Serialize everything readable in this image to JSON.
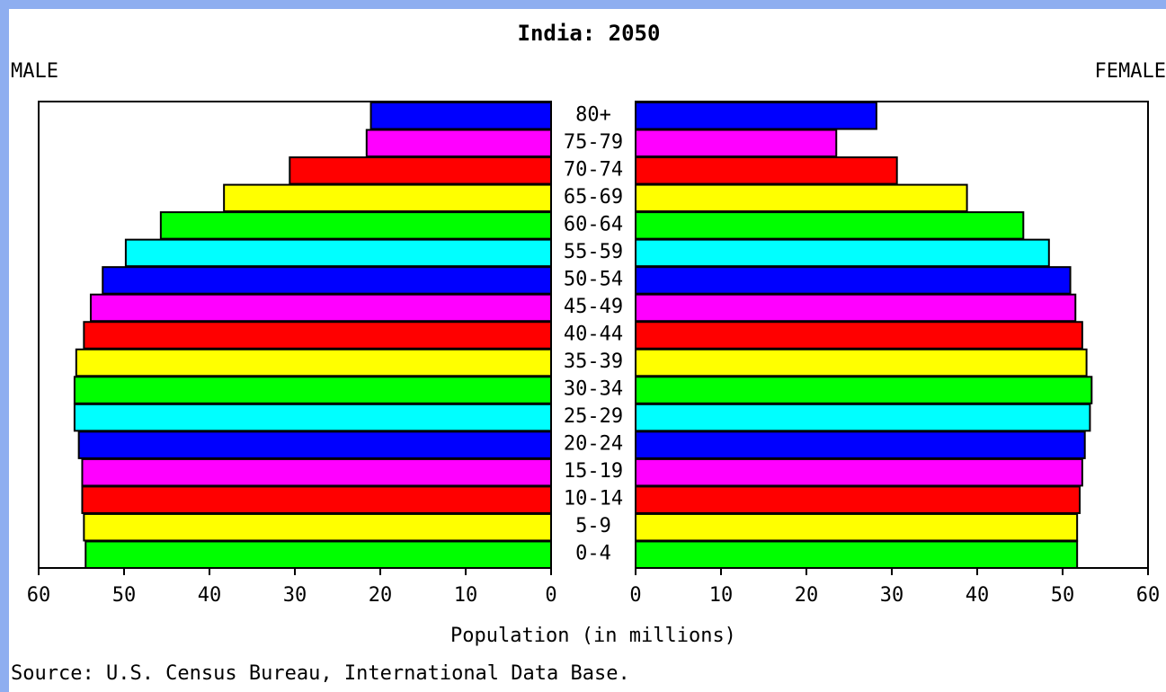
{
  "chart_data": {
    "type": "pyramid",
    "title": "India: 2050",
    "x_label": "Population (in millions)",
    "source": "Source: U.S. Census Bureau, International Data Base.",
    "categories": [
      "80+",
      "75-79",
      "70-74",
      "65-69",
      "60-64",
      "55-59",
      "50-54",
      "45-49",
      "40-44",
      "35-39",
      "30-34",
      "25-29",
      "20-24",
      "15-19",
      "10-14",
      "5-9",
      "0-4"
    ],
    "colors": [
      "#0000ff",
      "#ff00ff",
      "#ff0000",
      "#ffff00",
      "#00ff00",
      "#00ffff",
      "#0000ff",
      "#ff00ff",
      "#ff0000",
      "#ffff00",
      "#00ff00",
      "#00ffff",
      "#0000ff",
      "#ff00ff",
      "#ff0000",
      "#ffff00",
      "#00ff00"
    ],
    "series": [
      {
        "name": "MALE",
        "values": [
          21.1,
          21.6,
          30.6,
          38.3,
          45.7,
          49.8,
          52.5,
          53.9,
          54.7,
          55.6,
          55.8,
          55.8,
          55.3,
          54.9,
          54.9,
          54.7,
          54.5
        ]
      },
      {
        "name": "FEMALE",
        "values": [
          28.2,
          23.5,
          30.6,
          38.8,
          45.4,
          48.4,
          50.9,
          51.5,
          52.3,
          52.8,
          53.4,
          53.2,
          52.6,
          52.3,
          52.0,
          51.7,
          51.7
        ]
      }
    ],
    "xlim": [
      0,
      60
    ],
    "xticks": [
      0,
      10,
      20,
      30,
      40,
      50,
      60
    ]
  }
}
